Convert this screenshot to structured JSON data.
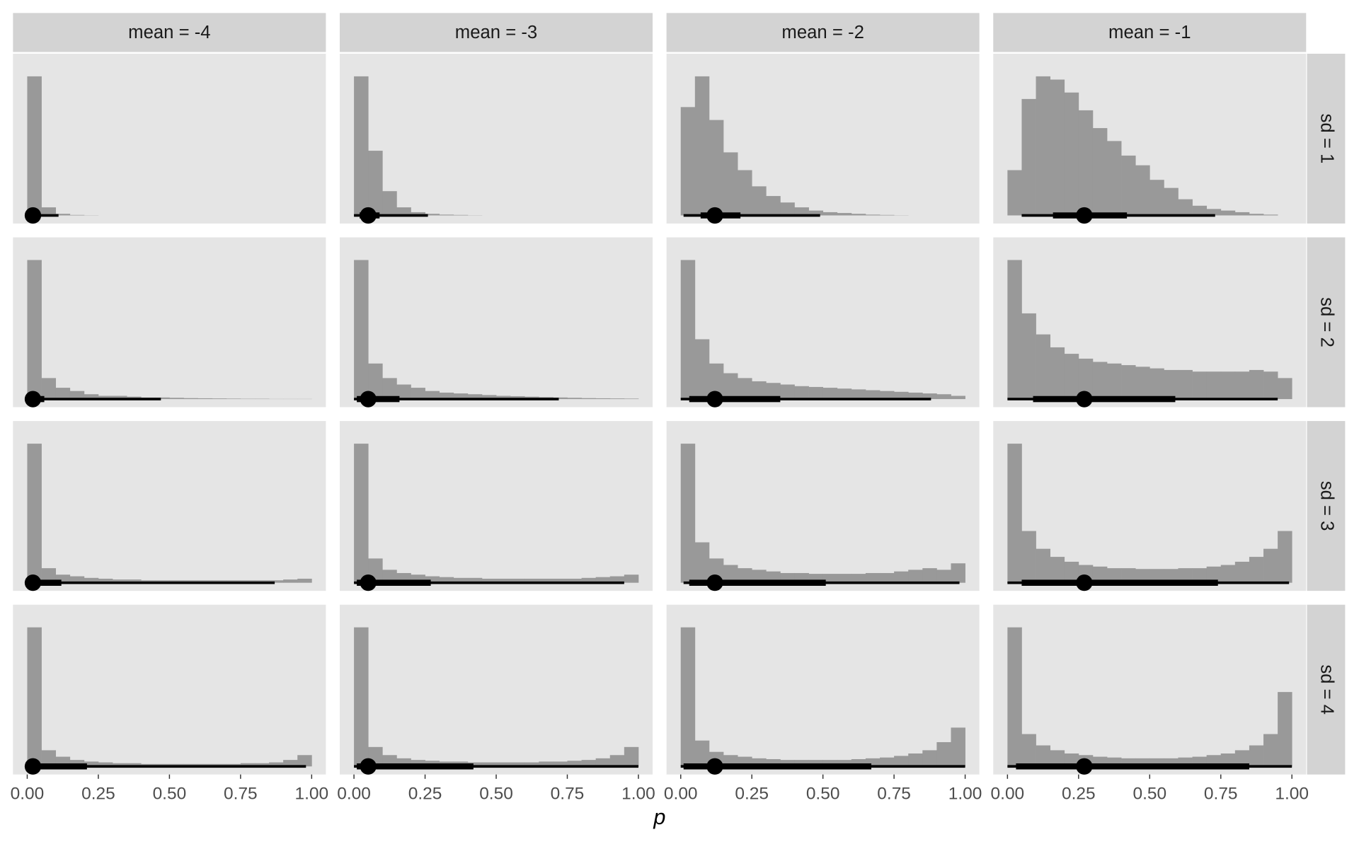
{
  "chart_data": {
    "type": "histinterval",
    "xlabel": "p",
    "xlim": [
      -0.05,
      1.05
    ],
    "ylim": [
      -0.05,
      1
    ],
    "xticks": [
      {
        "value": 0,
        "label": "0.00"
      },
      {
        "value": 0.25,
        "label": "0.25"
      },
      {
        "value": 0.5,
        "label": "0.50"
      },
      {
        "value": 0.75,
        "label": "0.75"
      },
      {
        "value": 1,
        "label": "1.00"
      }
    ],
    "grid": false,
    "bar_color": "#999999",
    "interval_color": "#000000",
    "bins": [
      0,
      0.05,
      0.1,
      0.15,
      0.2,
      0.25,
      0.3,
      0.35,
      0.4,
      0.45,
      0.5,
      0.55,
      0.6,
      0.65,
      0.7,
      0.75,
      0.8,
      0.85,
      0.9,
      0.95,
      1
    ],
    "columns": [
      "mean = -4",
      "mean = -3",
      "mean = -2",
      "mean = -1"
    ],
    "rows": [
      {
        "label": "sd = 1",
        "panels": [
          {
            "counts": [
              0.86,
              0.05,
              0.01,
              0.003,
              0.001,
              0,
              0,
              0,
              0,
              0,
              0,
              0,
              0,
              0,
              0,
              0,
              0,
              0,
              0,
              0
            ],
            "median": 0.02,
            "interval_66": [
              0.01,
              0.04
            ],
            "interval_95": [
              0,
              0.11
            ]
          },
          {
            "counts": [
              0.86,
              0.4,
              0.15,
              0.05,
              0.02,
              0.01,
              0.005,
              0.003,
              0.001,
              0,
              0,
              0,
              0,
              0,
              0,
              0,
              0,
              0,
              0,
              0
            ],
            "median": 0.05,
            "interval_66": [
              0.02,
              0.09
            ],
            "interval_95": [
              0,
              0.26
            ]
          },
          {
            "counts": [
              0.67,
              0.86,
              0.59,
              0.39,
              0.28,
              0.18,
              0.12,
              0.08,
              0.05,
              0.03,
              0.02,
              0.015,
              0.01,
              0.005,
              0.003,
              0.001,
              0,
              0,
              0,
              0
            ],
            "median": 0.12,
            "interval_66": [
              0.07,
              0.21
            ],
            "interval_95": [
              0.01,
              0.49
            ]
          },
          {
            "counts": [
              0.28,
              0.72,
              0.86,
              0.84,
              0.76,
              0.65,
              0.54,
              0.46,
              0.37,
              0.31,
              0.22,
              0.17,
              0.1,
              0.06,
              0.04,
              0.03,
              0.02,
              0.01,
              0.005,
              0
            ],
            "median": 0.27,
            "interval_66": [
              0.16,
              0.42
            ],
            "interval_95": [
              0.05,
              0.73
            ]
          }
        ]
      },
      {
        "label": "sd = 2",
        "panels": [
          {
            "counts": [
              0.86,
              0.13,
              0.07,
              0.05,
              0.03,
              0.02,
              0.02,
              0.015,
              0.01,
              0.01,
              0.008,
              0.006,
              0.005,
              0.004,
              0.003,
              0.002,
              0.002,
              0.001,
              0.001,
              0.001
            ],
            "median": 0.02,
            "interval_66": [
              0,
              0.06
            ],
            "interval_95": [
              0,
              0.47
            ]
          },
          {
            "counts": [
              0.86,
              0.22,
              0.13,
              0.09,
              0.07,
              0.05,
              0.04,
              0.035,
              0.03,
              0.025,
              0.02,
              0.018,
              0.015,
              0.012,
              0.01,
              0.008,
              0.006,
              0.005,
              0.004,
              0.003
            ],
            "median": 0.05,
            "interval_66": [
              0.01,
              0.16
            ],
            "interval_95": [
              0,
              0.72
            ]
          },
          {
            "counts": [
              0.86,
              0.37,
              0.22,
              0.16,
              0.13,
              0.11,
              0.1,
              0.09,
              0.08,
              0.075,
              0.07,
              0.065,
              0.06,
              0.055,
              0.05,
              0.045,
              0.04,
              0.035,
              0.03,
              0.02
            ],
            "median": 0.12,
            "interval_66": [
              0.03,
              0.35
            ],
            "interval_95": [
              0,
              0.88
            ]
          },
          {
            "counts": [
              0.86,
              0.53,
              0.4,
              0.32,
              0.28,
              0.25,
              0.23,
              0.22,
              0.21,
              0.2,
              0.19,
              0.18,
              0.18,
              0.17,
              0.17,
              0.17,
              0.17,
              0.18,
              0.17,
              0.13
            ],
            "median": 0.27,
            "interval_66": [
              0.09,
              0.59
            ],
            "interval_95": [
              0,
              0.95
            ]
          }
        ]
      },
      {
        "label": "sd = 3",
        "panels": [
          {
            "counts": [
              0.86,
              0.09,
              0.05,
              0.04,
              0.03,
              0.025,
              0.02,
              0.02,
              0.015,
              0.015,
              0.015,
              0.015,
              0.015,
              0.015,
              0.015,
              0.015,
              0.015,
              0.015,
              0.02,
              0.025
            ],
            "median": 0.02,
            "interval_66": [
              0,
              0.12
            ],
            "interval_95": [
              0,
              0.87
            ]
          },
          {
            "counts": [
              0.86,
              0.15,
              0.08,
              0.06,
              0.05,
              0.04,
              0.035,
              0.03,
              0.03,
              0.025,
              0.025,
              0.025,
              0.025,
              0.025,
              0.025,
              0.025,
              0.03,
              0.035,
              0.04,
              0.05
            ],
            "median": 0.05,
            "interval_66": [
              0.01,
              0.27
            ],
            "interval_95": [
              0,
              0.95
            ]
          },
          {
            "counts": [
              0.86,
              0.25,
              0.15,
              0.11,
              0.09,
              0.08,
              0.07,
              0.06,
              0.06,
              0.055,
              0.055,
              0.055,
              0.055,
              0.06,
              0.06,
              0.07,
              0.08,
              0.09,
              0.08,
              0.12
            ],
            "median": 0.12,
            "interval_66": [
              0.03,
              0.51
            ],
            "interval_95": [
              0.01,
              0.98
            ]
          },
          {
            "counts": [
              0.86,
              0.32,
              0.21,
              0.16,
              0.13,
              0.11,
              0.1,
              0.09,
              0.09,
              0.085,
              0.085,
              0.085,
              0.09,
              0.09,
              0.1,
              0.11,
              0.13,
              0.16,
              0.21,
              0.32
            ],
            "median": 0.27,
            "interval_66": [
              0.05,
              0.74
            ],
            "interval_95": [
              0,
              0.99
            ]
          }
        ]
      },
      {
        "label": "sd = 4",
        "panels": [
          {
            "counts": [
              0.86,
              0.1,
              0.06,
              0.04,
              0.03,
              0.025,
              0.02,
              0.02,
              0.015,
              0.015,
              0.015,
              0.015,
              0.015,
              0.015,
              0.015,
              0.02,
              0.02,
              0.025,
              0.04,
              0.07
            ],
            "median": 0.02,
            "interval_66": [
              0,
              0.21
            ],
            "interval_95": [
              0,
              0.98
            ]
          },
          {
            "counts": [
              0.86,
              0.12,
              0.07,
              0.05,
              0.04,
              0.035,
              0.03,
              0.03,
              0.025,
              0.025,
              0.025,
              0.025,
              0.025,
              0.03,
              0.03,
              0.035,
              0.04,
              0.05,
              0.07,
              0.12
            ],
            "median": 0.05,
            "interval_66": [
              0.01,
              0.42
            ],
            "interval_95": [
              0,
              1
            ]
          },
          {
            "counts": [
              0.86,
              0.16,
              0.09,
              0.07,
              0.06,
              0.05,
              0.045,
              0.04,
              0.04,
              0.04,
              0.04,
              0.04,
              0.045,
              0.05,
              0.055,
              0.065,
              0.08,
              0.1,
              0.15,
              0.24
            ],
            "median": 0.12,
            "interval_66": [
              0.01,
              0.67
            ],
            "interval_95": [
              0,
              1
            ]
          },
          {
            "counts": [
              0.86,
              0.2,
              0.13,
              0.1,
              0.08,
              0.07,
              0.06,
              0.055,
              0.05,
              0.05,
              0.05,
              0.05,
              0.055,
              0.06,
              0.07,
              0.08,
              0.1,
              0.13,
              0.2,
              0.46
            ],
            "median": 0.27,
            "interval_66": [
              0.03,
              0.85
            ],
            "interval_95": [
              0,
              1
            ]
          }
        ]
      }
    ]
  }
}
